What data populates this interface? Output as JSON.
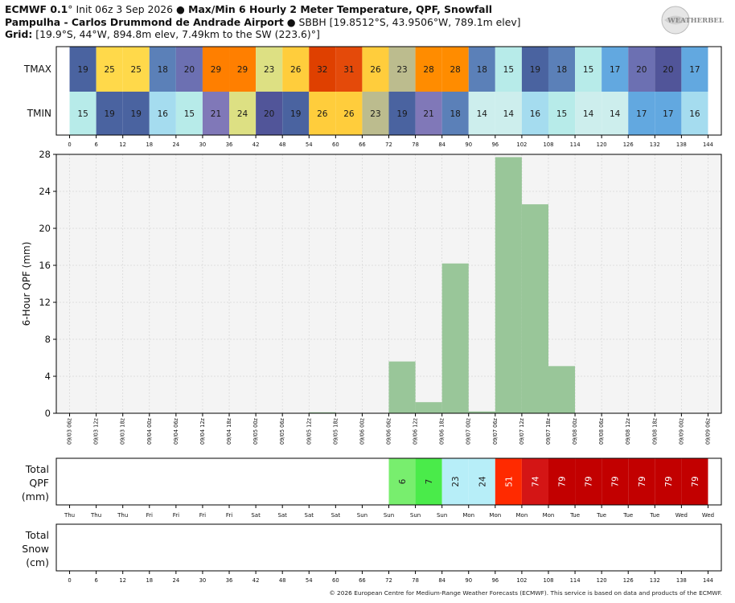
{
  "header": {
    "model": "ECMWF 0.1",
    "deg": "°",
    "init": " Init 06z 3 Sep 2026 ",
    "bullet1": "●",
    "title": " Max/Min 6 Hourly 2 Meter Temperature,  QPF,  Snowfall",
    "station": "Pampulha - Carlos Drummond de Andrade Airport",
    "bullet2": " ● ",
    "station_info": "SBBH [19.8512°S, 43.9506°W, 789.1m elev]",
    "grid_label": "Grid:",
    "grid_info": " [19.9°S, 44°W, 894.8m elev, 7.49km to the SW (223.6)°]"
  },
  "logo": {
    "name": "weatherbell-logo",
    "text": "WEATHERBELL"
  },
  "colors": {
    "qpf_bar": "#99c699",
    "plot_bg": "#f4f4f4",
    "temp_scale": {
      "14": "#cdeeed",
      "15": "#b7ebe9",
      "16": "#a5dcef",
      "17": "#62a8e0",
      "18": "#5b80b8",
      "19": "#4a63a0",
      "20": "#6c70b2",
      "21": "#8078b8",
      "23": "#d4d585",
      "24": "#dde083",
      "25": "#ffd94a",
      "26": "#ffcd3c",
      "28": "#ff8c00",
      "29": "#ff7f00",
      "31": "#e44a0a",
      "32": "#df4000",
      "23b": "#bcbc8e",
      "20b": "#515599"
    }
  },
  "chart_data": {
    "type": "bar",
    "x_hours": [
      0,
      6,
      12,
      18,
      24,
      30,
      36,
      42,
      48,
      54,
      60,
      66,
      72,
      78,
      84,
      90,
      96,
      102,
      108,
      114,
      120,
      126,
      132,
      138,
      144
    ],
    "date_labels": [
      "09/03 06z",
      "09/03 12z",
      "09/03 18z",
      "09/04 00z",
      "09/04 06z",
      "09/04 12z",
      "09/04 18z",
      "09/05 00z",
      "09/05 06z",
      "09/05 12z",
      "09/05 18z",
      "09/06 00z",
      "09/06 06z",
      "09/06 12z",
      "09/06 18z",
      "09/07 00z",
      "09/07 06z",
      "09/07 12z",
      "09/07 18z",
      "09/08 00z",
      "09/08 06z",
      "09/08 12z",
      "09/08 18z",
      "09/09 00z",
      "09/09 06z"
    ],
    "day_labels": [
      "Thu",
      "Thu",
      "Thu",
      "Fri",
      "Fri",
      "Fri",
      "Fri",
      "Sat",
      "Sat",
      "Sat",
      "Sat",
      "Sun",
      "Sun",
      "Sun",
      "Sun",
      "Mon",
      "Mon",
      "Mon",
      "Mon",
      "Tue",
      "Tue",
      "Tue",
      "Tue",
      "Wed",
      "Wed"
    ],
    "tmax": {
      "label": "TMAX",
      "values": [
        19,
        25,
        25,
        18,
        20,
        29,
        29,
        23,
        26,
        32,
        31,
        26,
        23,
        28,
        28,
        18,
        15,
        19,
        18,
        15,
        17,
        20,
        20,
        17
      ],
      "colors": [
        "#4a63a0",
        "#ffd94a",
        "#ffd94a",
        "#5b80b8",
        "#6c70b2",
        "#ff7f00",
        "#ff7f00",
        "#dde083",
        "#ffcd3c",
        "#df4000",
        "#e44a0a",
        "#ffcd3c",
        "#bcbc8e",
        "#ff8c00",
        "#ff8c00",
        "#5b80b8",
        "#b7ebe9",
        "#4a63a0",
        "#5b80b8",
        "#b7ebe9",
        "#62a8e0",
        "#6c70b2",
        "#515599",
        "#62a8e0"
      ]
    },
    "tmin": {
      "label": "TMIN",
      "values": [
        15,
        19,
        19,
        16,
        15,
        21,
        24,
        20,
        19,
        26,
        26,
        23,
        19,
        21,
        18,
        14,
        14,
        16,
        15,
        14,
        14,
        17,
        17,
        16
      ],
      "colors": [
        "#b7ebe9",
        "#4a63a0",
        "#4a63a0",
        "#a5dcef",
        "#b7ebe9",
        "#8078b8",
        "#dde083",
        "#515599",
        "#4a63a0",
        "#ffcd3c",
        "#ffcd3c",
        "#bcbc8e",
        "#4a63a0",
        "#8078b8",
        "#5b80b8",
        "#cdeeed",
        "#cdeeed",
        "#a5dcef",
        "#b7ebe9",
        "#cdeeed",
        "#cdeeed",
        "#62a8e0",
        "#62a8e0",
        "#a5dcef"
      ]
    },
    "qpf_6h": {
      "ylabel": "6-Hour QPF (mm)",
      "ylim": [
        0,
        28
      ],
      "yticks": [
        0,
        4,
        8,
        12,
        16,
        20,
        24,
        28
      ],
      "values": [
        0,
        0,
        0,
        0,
        0,
        0,
        0,
        0,
        0,
        0.1,
        0,
        0,
        5.6,
        1.2,
        16.2,
        0.2,
        27.7,
        22.6,
        5.1,
        0,
        0,
        0,
        0,
        0
      ]
    },
    "total_qpf": {
      "label_lines": [
        "Total",
        "QPF",
        "(mm)"
      ],
      "start_index": 12,
      "values": [
        6,
        7,
        23,
        24,
        51,
        74,
        79,
        79,
        79,
        79,
        79,
        79
      ],
      "colors": [
        "#78ee6e",
        "#4aeb4a",
        "#b7eef8",
        "#b7eef8",
        "#ff2a00",
        "#d41515",
        "#c20000",
        "#c20000",
        "#c20000",
        "#c20000",
        "#c20000",
        "#c20000"
      ],
      "text_colors": [
        "#222",
        "#222",
        "#222",
        "#222",
        "#ffffff",
        "#ffffff",
        "#ffffff",
        "#ffffff",
        "#ffffff",
        "#ffffff",
        "#ffffff",
        "#ffffff"
      ]
    },
    "total_snow": {
      "label_lines": [
        "Total",
        "Snow",
        "(cm)"
      ],
      "values": []
    }
  },
  "footer": "© 2026 European Centre for Medium-Range Weather Forecasts (ECMWF). This service is based on data and products of the ECMWF."
}
